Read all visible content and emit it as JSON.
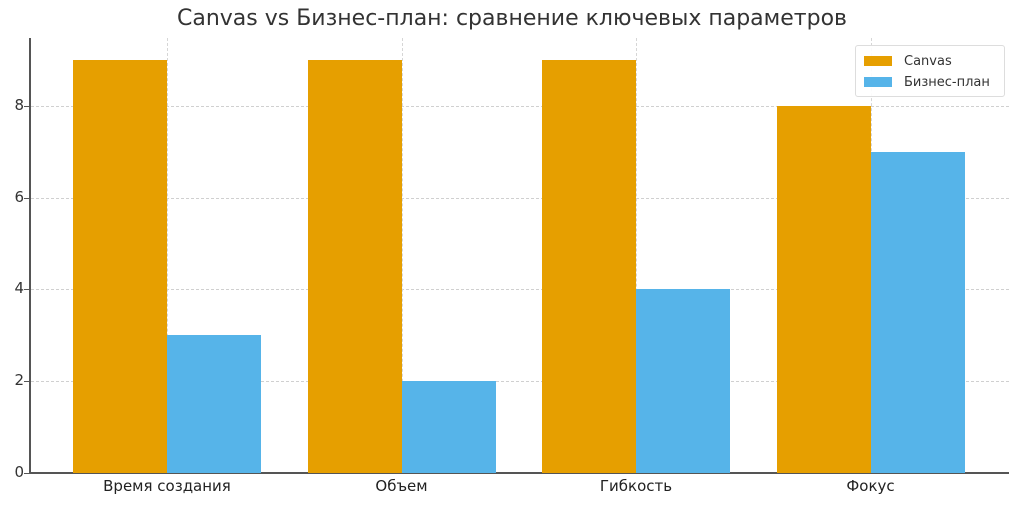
{
  "chart_data": {
    "type": "bar",
    "title": "Canvas vs Бизнес-план: сравнение ключевых параметров",
    "xlabel": "",
    "ylabel": "",
    "categories": [
      "Время создания",
      "Объем",
      "Гибкость",
      "Фокус"
    ],
    "series": [
      {
        "name": "Canvas",
        "color": "#E69F00",
        "values": [
          9,
          9,
          9,
          8
        ]
      },
      {
        "name": "Бизнес-план",
        "color": "#56B4E9",
        "values": [
          3,
          2,
          4,
          7
        ]
      }
    ],
    "ylim": [
      0,
      9.45
    ],
    "yticks": [
      0,
      2,
      4,
      6,
      8
    ],
    "grid": true,
    "legend_position": "upper right"
  }
}
